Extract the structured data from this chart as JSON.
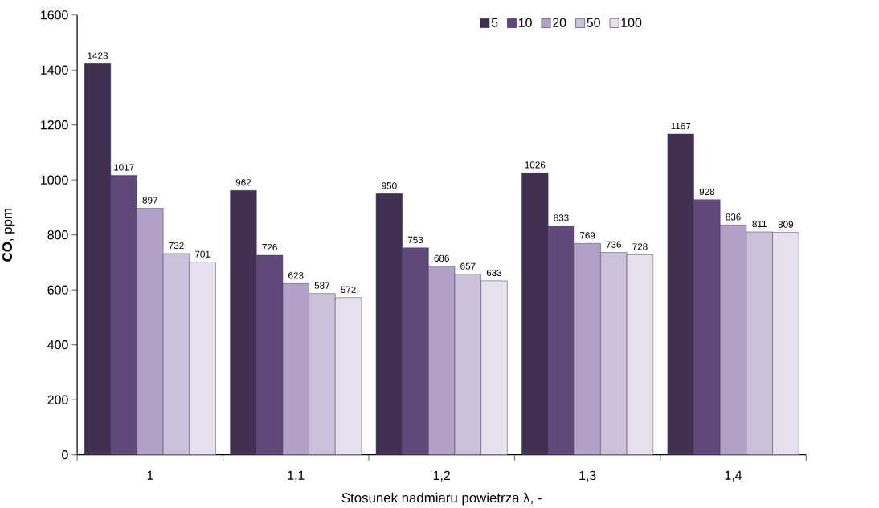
{
  "chart_data": {
    "type": "bar",
    "xlabel": "Stosunek nadmiaru powietrza λ, -",
    "ylabel": "**CO**, ppm",
    "categories": [
      "1",
      "1,1",
      "1,2",
      "1,3",
      "1,4"
    ],
    "series": [
      {
        "name": "5",
        "color": "#403152",
        "values": [
          1423,
          962,
          950,
          1026,
          1167
        ]
      },
      {
        "name": "10",
        "color": "#5f497a",
        "values": [
          1017,
          726,
          753,
          833,
          928
        ]
      },
      {
        "name": "20",
        "color": "#b2a1c7",
        "values": [
          897,
          623,
          686,
          769,
          836
        ]
      },
      {
        "name": "50",
        "color": "#ccc1da",
        "values": [
          732,
          587,
          657,
          736,
          811
        ]
      },
      {
        "name": "100",
        "color": "#e5e0ec",
        "values": [
          701,
          572,
          633,
          728,
          809
        ]
      }
    ],
    "ylim": [
      0,
      1600
    ],
    "yticks": [
      0,
      200,
      400,
      600,
      800,
      1000,
      1200,
      1400,
      1600
    ],
    "data_labels": true,
    "legend": "top right",
    "grid": false
  }
}
